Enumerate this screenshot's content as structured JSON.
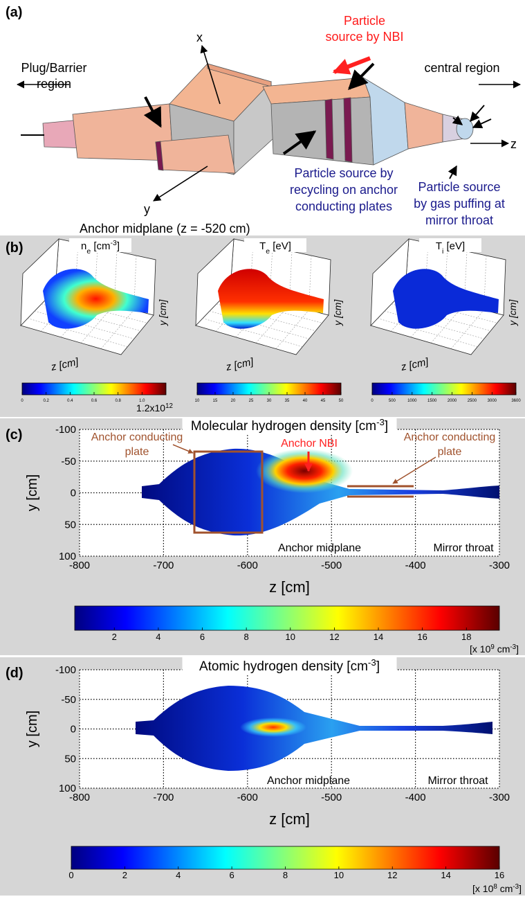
{
  "panel_a": {
    "label": "(a)",
    "axis_x": "x",
    "axis_y": "y",
    "axis_z": "z",
    "nbi_source": [
      "Particle",
      "source by NBI"
    ],
    "plug_region": [
      "Plug/Barrier",
      "region"
    ],
    "central_region": "central region",
    "recycling_source": [
      "Particle source by",
      "recycling on anchor",
      "conducting plates"
    ],
    "gas_source": [
      "Particle source",
      "by gas puffing at",
      "mirror throat"
    ],
    "midplane": "Anchor  midplane (z = -520 cm)"
  },
  "panel_b": {
    "label": "(b)",
    "x_label": "z [cm]",
    "y_label": "y [cm]",
    "plots": [
      {
        "title": [
          "n",
          "e",
          " [cm",
          "-3",
          "]"
        ],
        "colorbar": {
          "lim": [
            0,
            1.2
          ],
          "ticks": [
            0,
            0.2,
            0.4,
            0.6,
            0.8,
            {
              "value": 1,
              "label": "1.0"
            }
          ],
          "max_label": [
            "1.2x10",
            "12"
          ]
        }
      },
      {
        "title": [
          "T",
          "e",
          " [eV]"
        ],
        "colorbar": {
          "lim": [
            10,
            50
          ],
          "ticks": [
            10,
            15,
            20,
            25,
            30,
            35,
            40,
            45,
            50
          ]
        }
      },
      {
        "title": [
          "T",
          "i",
          " [eV]"
        ],
        "colorbar": {
          "lim": [
            0,
            3600
          ],
          "ticks": [
            0,
            500,
            1000,
            1500,
            2000,
            2500,
            3000,
            3600
          ]
        }
      }
    ]
  },
  "panel_c": {
    "label": "(c)",
    "title": [
      "Molecular hydrogen density [cm",
      "-3",
      "]"
    ],
    "xlabel": "z [cm]",
    "ylabel": "y [cm]",
    "xlim": [
      -800,
      -300
    ],
    "ylim": [
      -100,
      100
    ],
    "xticks": [
      -800,
      -700,
      -600,
      -500,
      -400,
      -300
    ],
    "yticks": [
      -100,
      -50,
      0,
      50,
      100
    ],
    "plate_left": [
      "Anchor conducting",
      "plate"
    ],
    "nbi": "Anchor NBI",
    "plate_right": [
      "Anchor conducting",
      "plate"
    ],
    "midplane": "Anchor midplane",
    "mirror": "Mirror throat",
    "colorbar": {
      "lim": [
        0.2,
        19.5
      ],
      "ticks": [
        2,
        4,
        6,
        8,
        10,
        12,
        14,
        16,
        18
      ],
      "unit": [
        "[x 10",
        "9",
        " cm",
        "-3",
        "]"
      ]
    }
  },
  "panel_d": {
    "label": "(d)",
    "title": [
      "Atomic hydrogen density [cm",
      "-3",
      "]"
    ],
    "xlabel": "z [cm]",
    "ylabel": "y [cm]",
    "xlim": [
      -800,
      -300
    ],
    "ylim": [
      -100,
      100
    ],
    "xticks": [
      -800,
      -700,
      -600,
      -500,
      -400,
      -300
    ],
    "yticks": [
      -100,
      -50,
      0,
      50,
      100
    ],
    "midplane": "Anchor midplane",
    "mirror": "Mirror throat",
    "colorbar": {
      "lim": [
        0,
        16
      ],
      "ticks": [
        0,
        2,
        4,
        6,
        8,
        10,
        12,
        14,
        16
      ],
      "unit": [
        "[x 10",
        "8",
        " cm",
        "-3",
        "]"
      ]
    }
  }
}
